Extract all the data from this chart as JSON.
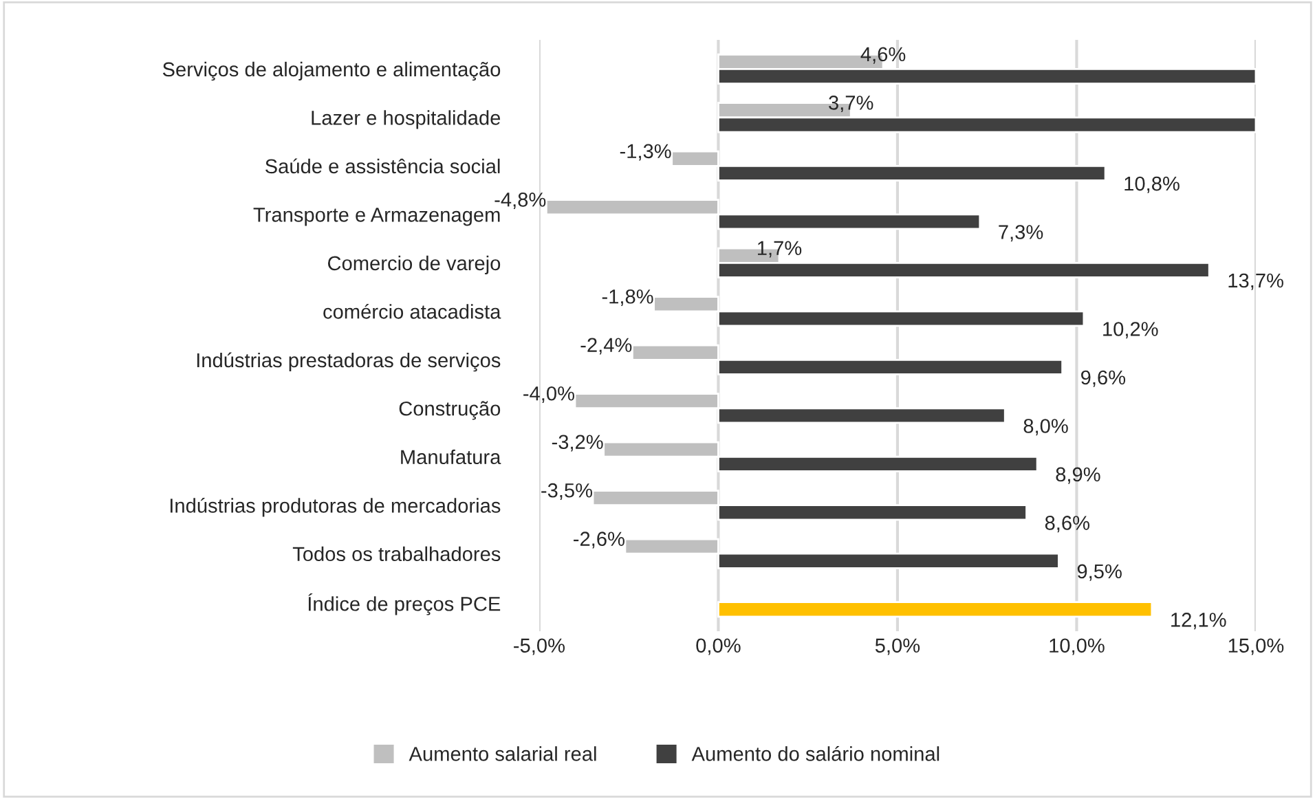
{
  "chart_data": {
    "type": "bar",
    "orientation": "horizontal",
    "categories": [
      "Serviços de alojamento e alimentação",
      "Lazer e hospitalidade",
      "Saúde e assistência social",
      "Transporte e Armazenagem",
      "Comercio de varejo",
      "comércio atacadista",
      "Indústrias prestadoras de serviços",
      "Construção",
      "Manufatura",
      "Indústrias produtoras de mercadorias",
      "Todos os trabalhadores",
      "Índice de preços PCE"
    ],
    "series": [
      {
        "name": "Aumento salarial real",
        "color": "#bfbfbf",
        "values": [
          4.6,
          3.7,
          -1.3,
          -4.8,
          1.7,
          -1.8,
          -2.4,
          -4.0,
          -3.2,
          -3.5,
          -2.6,
          null
        ],
        "value_labels": [
          "4,6%",
          "3,7%",
          "-1,3%",
          "-4,8%",
          "1,7%",
          "-1,8%",
          "-2,4%",
          "-4,0%",
          "-3,2%",
          "-3,5%",
          "-2,6%",
          null
        ]
      },
      {
        "name": "Aumento do salário nominal",
        "color": "#404040",
        "colors": [
          "#404040",
          "#404040",
          "#404040",
          "#404040",
          "#404040",
          "#404040",
          "#404040",
          "#404040",
          "#404040",
          "#404040",
          "#404040",
          "#ffc000"
        ],
        "values": [
          15.0,
          15.0,
          10.8,
          7.3,
          13.7,
          10.2,
          9.6,
          8.0,
          8.9,
          8.6,
          9.5,
          12.1
        ],
        "value_labels": [
          null,
          null,
          "10,8%",
          "7,3%",
          "13,7%",
          "10,2%",
          "9,6%",
          "8,0%",
          "8,9%",
          "8,6%",
          "9,5%",
          "12,1%"
        ]
      }
    ],
    "xlim": [
      -5,
      15
    ],
    "xticks": [
      {
        "value": -5,
        "label": "-5,0%"
      },
      {
        "value": 0,
        "label": "0,0%"
      },
      {
        "value": 5,
        "label": "5,0%"
      },
      {
        "value": 10,
        "label": "10,0%"
      },
      {
        "value": 15,
        "label": "15,0%"
      }
    ],
    "grid": "x",
    "legend": "bottom"
  }
}
